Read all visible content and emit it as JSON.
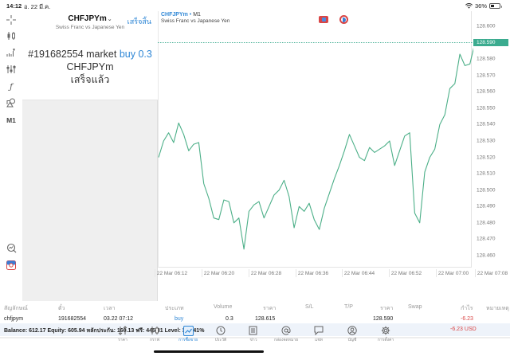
{
  "status_bar": {
    "time": "14:12",
    "date": "อ. 22 มี.ค.",
    "battery": "36%"
  },
  "toolbar": {
    "items": [
      {
        "name": "crosshair-icon",
        "glyph": "+"
      },
      {
        "name": "chart-type-icon",
        "glyph": "♦"
      },
      {
        "name": "indicators-icon",
        "glyph": "▁▃▅"
      },
      {
        "name": "settings-sliders-icon",
        "glyph": "⇅"
      },
      {
        "name": "function-icon",
        "glyph": "ƒ"
      },
      {
        "name": "objects-icon",
        "glyph": "⌂"
      }
    ],
    "timeframe": "M1",
    "bottom_items": [
      {
        "name": "chart-search-icon"
      },
      {
        "name": "one-click-trading-icon"
      }
    ]
  },
  "panel": {
    "symbol": "CHFJPYm",
    "symbol_chevron": "⌄",
    "done_label": "เสร็จสิ้น",
    "description": "Swiss Franc vs Japanese Yen",
    "message_prefix": "#191682554 market",
    "message_action": "buy 0.3",
    "message_symbol": "CHFJPYm",
    "message_status": "เสร็จแล้ว"
  },
  "chart": {
    "symbol": "CHFJPYm",
    "separator": "•",
    "timeframe": "M1",
    "description": "Swiss Franc vs Japanese Yen",
    "current_price": "128.590",
    "line_color": "#4caf88",
    "price_tag_color": "#3bab8f"
  },
  "chart_data": {
    "type": "line",
    "title": "CHFJPYm • M1",
    "subtitle": "Swiss Franc vs Japanese Yen",
    "xlabel": "",
    "ylabel": "",
    "ylim": [
      128.455,
      128.605
    ],
    "grid": false,
    "y_ticks": [
      "128.600",
      "128.590",
      "128.580",
      "128.570",
      "128.560",
      "128.550",
      "128.540",
      "128.530",
      "128.520",
      "128.510",
      "128.500",
      "128.490",
      "128.480",
      "128.470",
      "128.460"
    ],
    "x_ticks": [
      "22 Mar 06:12",
      "22 Mar 06:20",
      "22 Mar 06:28",
      "22 Mar 06:36",
      "22 Mar 06:44",
      "22 Mar 06:52",
      "22 Mar 07:00",
      "22 Mar 07:08"
    ],
    "current_price_line": 128.59,
    "series": [
      {
        "name": "CHFJPYm close",
        "values": [
          128.52,
          128.53,
          128.535,
          128.529,
          128.541,
          128.534,
          128.524,
          128.528,
          128.529,
          128.504,
          128.495,
          128.483,
          128.482,
          128.494,
          128.493,
          128.48,
          128.483,
          128.464,
          128.487,
          128.491,
          128.493,
          128.483,
          128.49,
          128.497,
          128.5,
          128.506,
          128.496,
          128.477,
          128.49,
          128.487,
          128.492,
          128.482,
          128.476,
          128.489,
          128.498,
          128.507,
          128.515,
          128.524,
          128.534,
          128.527,
          128.52,
          128.518,
          128.526,
          128.523,
          128.525,
          128.527,
          128.53,
          128.515,
          128.524,
          128.533,
          128.535,
          128.486,
          128.48,
          128.511,
          128.52,
          128.525,
          128.54,
          128.546,
          128.562,
          128.565,
          128.583,
          128.576,
          128.577,
          128.59
        ]
      }
    ]
  },
  "table": {
    "headers": [
      "สัญลักษณ์",
      "ตั๋ว",
      "เวลา",
      "ประเภท",
      "Volume",
      "ราคา",
      "S/L",
      "T/P",
      "ราคา",
      "Swap",
      "กำไร",
      "หมายเหตุ"
    ],
    "rows": [
      {
        "symbol": "chfjpym",
        "ticket": "191682554",
        "time": "03.22 07:12",
        "type": "buy",
        "volume": "0.3",
        "open_price": "128.615",
        "sl": "",
        "tp": "",
        "price": "128.590",
        "swap": "",
        "profit": "-6.23",
        "comment": ""
      }
    ],
    "balance_line": "Balance: 612.17 Equity: 605.94 หลักประกัน: 160.13 ฟรี: 445.81 Level: 378.41%",
    "total_profit": "-6.23  USD"
  },
  "tabbar": {
    "tabs": [
      {
        "label": "ราคา",
        "icon": "quotes-icon",
        "glyph": "↓↑"
      },
      {
        "label": "กราฟ",
        "icon": "chart-icon",
        "glyph": "♦"
      },
      {
        "label": "การซื้อขาย",
        "icon": "trade-icon",
        "glyph": "📈",
        "active": true
      },
      {
        "label": "ประวัติ",
        "icon": "history-icon",
        "glyph": "◔"
      },
      {
        "label": "ข่าว",
        "icon": "news-icon",
        "glyph": "▤"
      },
      {
        "label": "กล่องจดหมาย",
        "icon": "mailbox-icon",
        "glyph": "@"
      },
      {
        "label": "แชท",
        "icon": "chat-icon",
        "glyph": "▢"
      },
      {
        "label": "บัญชี",
        "icon": "account-icon",
        "glyph": "◉"
      },
      {
        "label": "การตั้งค่า",
        "icon": "settings-icon",
        "glyph": "⚙"
      }
    ]
  }
}
